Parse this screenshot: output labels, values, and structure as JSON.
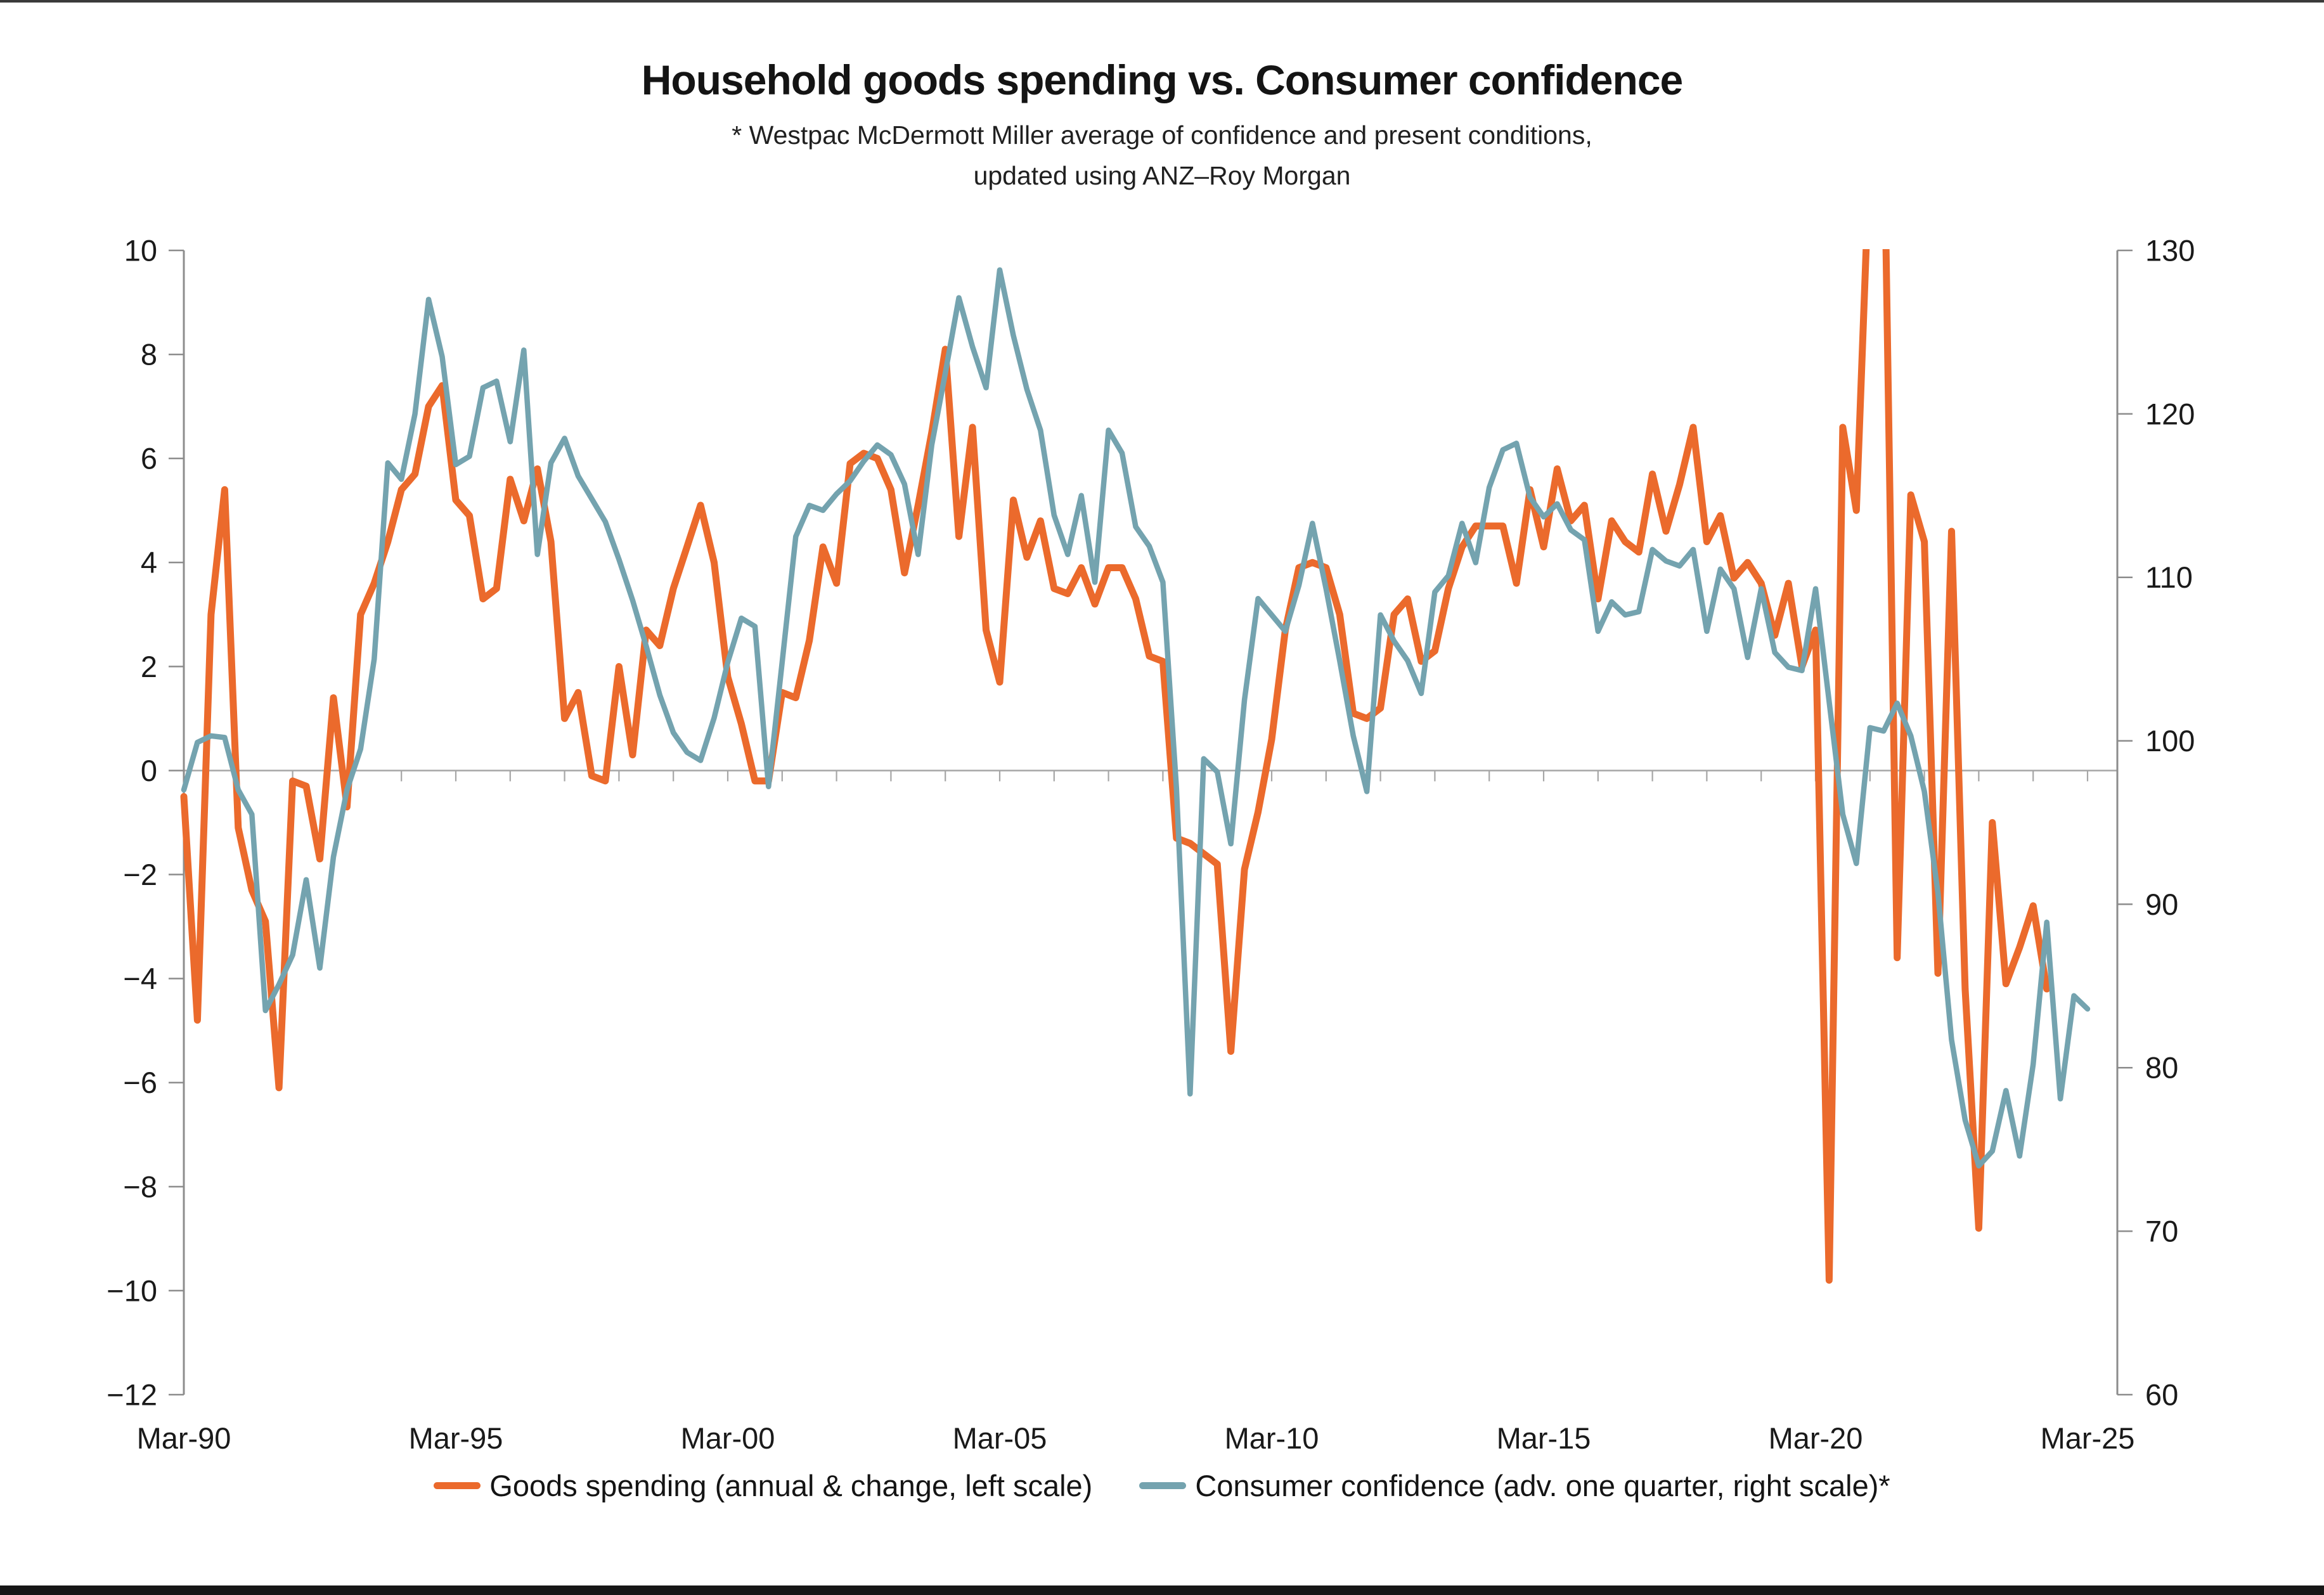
{
  "header": {
    "title": "Household goods spending vs. Consumer confidence",
    "subtitle_line1": "* Westpac McDermott Miller average of confidence and present conditions,",
    "subtitle_line2": "updated using ANZ–Roy Morgan"
  },
  "colors": {
    "spending": "#EB6A2C",
    "confidence": "#74A3AF",
    "axis_line": "#8c8c8c",
    "zero_line": "#a6a6a6",
    "text": "#1a1a1a"
  },
  "chart_data": {
    "type": "line",
    "title": "Household goods spending vs. Consumer confidence",
    "x_start": "1990-Q1",
    "x_frequency": "quarterly",
    "x_tick_labels": [
      "Mar-90",
      "Mar-95",
      "Mar-00",
      "Mar-05",
      "Mar-10",
      "Mar-15",
      "Mar-20",
      "Mar-25"
    ],
    "x_minor_ticks": "yearly ticks along the zero line",
    "left_axis": {
      "ticks": [
        10,
        8,
        6,
        4,
        2,
        0,
        -2,
        -4,
        -6,
        -8,
        -10,
        -12
      ],
      "range": [
        -12,
        10
      ]
    },
    "right_axis": {
      "ticks": [
        130,
        120,
        110,
        100,
        90,
        80,
        70,
        60
      ],
      "range": [
        60,
        130
      ]
    },
    "grid": "zero line only",
    "legend_position": "bottom-center",
    "clip_note": "Goods-spending values above 10 (2021 Q1-Q2) are clipped by the top of the plot",
    "series": [
      {
        "name": "Goods spending (annual & change, left scale)",
        "axis": "left",
        "color": "#EB6A2C",
        "stroke_width": 11,
        "values": [
          -0.5,
          -4.8,
          3.0,
          5.4,
          -1.1,
          -2.3,
          -2.9,
          -6.1,
          -0.2,
          -0.3,
          -1.7,
          1.4,
          -0.7,
          3.0,
          3.6,
          4.4,
          5.4,
          5.7,
          7.0,
          7.4,
          5.2,
          4.9,
          3.3,
          3.5,
          5.6,
          4.8,
          5.8,
          4.4,
          1.0,
          1.5,
          -0.1,
          -0.2,
          2.0,
          0.3,
          2.7,
          2.4,
          3.5,
          4.3,
          5.1,
          4.0,
          1.8,
          0.9,
          -0.2,
          -0.2,
          1.5,
          1.4,
          2.5,
          4.3,
          3.6,
          5.9,
          6.1,
          6.0,
          5.4,
          3.8,
          5.1,
          6.5,
          8.1,
          4.5,
          6.6,
          2.7,
          1.7,
          5.2,
          4.1,
          4.8,
          3.5,
          3.4,
          3.9,
          3.2,
          3.9,
          3.9,
          3.3,
          2.2,
          2.1,
          -1.3,
          -1.4,
          -1.6,
          -1.8,
          -5.4,
          -1.9,
          -0.8,
          0.6,
          2.7,
          3.9,
          4.0,
          3.9,
          3.0,
          1.1,
          1.0,
          1.2,
          3.0,
          3.3,
          2.1,
          2.3,
          3.5,
          4.3,
          4.7,
          4.7,
          4.7,
          3.6,
          5.4,
          4.3,
          5.8,
          4.8,
          5.1,
          3.3,
          4.8,
          4.4,
          4.2,
          5.7,
          4.6,
          5.5,
          6.6,
          4.4,
          4.9,
          3.7,
          4.0,
          3.6,
          2.6,
          3.6,
          2.0,
          2.7,
          -9.8,
          6.6,
          5.0,
          12.0,
          13.0,
          -3.6,
          5.3,
          4.4,
          -3.9,
          4.6,
          -4.2,
          -8.8,
          -1.0,
          -4.1,
          -3.4,
          -2.6,
          -4.2
        ]
      },
      {
        "name": "Consumer confidence (adv. one quarter, right scale)*",
        "axis": "right",
        "color": "#74A3AF",
        "stroke_width": 8.5,
        "values": [
          97.0,
          99.9,
          100.3,
          100.2,
          97.0,
          95.5,
          83.5,
          85.1,
          86.9,
          91.5,
          86.1,
          92.9,
          97.0,
          99.5,
          105.0,
          117.0,
          116.0,
          120.0,
          127.0,
          123.5,
          116.9,
          117.4,
          121.6,
          122.0,
          118.3,
          123.9,
          111.4,
          117.0,
          118.5,
          116.2,
          114.8,
          113.4,
          111.1,
          108.6,
          105.8,
          102.8,
          100.5,
          99.3,
          98.8,
          101.4,
          104.8,
          107.5,
          107.0,
          97.2,
          104.8,
          112.5,
          114.4,
          114.1,
          115.1,
          115.9,
          117.1,
          118.1,
          117.5,
          115.7,
          111.4,
          118.1,
          122.5,
          127.1,
          124.1,
          121.6,
          128.8,
          124.8,
          121.5,
          119.0,
          113.8,
          111.4,
          115.0,
          109.7,
          119.0,
          117.6,
          113.1,
          111.9,
          109.7,
          97.1,
          78.4,
          98.9,
          98.1,
          93.7,
          102.5,
          108.7,
          107.7,
          106.7,
          109.5,
          113.3,
          109.3,
          104.9,
          100.3,
          96.9,
          107.7,
          106.1,
          104.9,
          102.9,
          109.1,
          110.1,
          113.3,
          110.9,
          115.5,
          117.8,
          118.2,
          114.9,
          113.7,
          114.5,
          112.9,
          112.3,
          106.7,
          108.5,
          107.7,
          107.9,
          111.7,
          111.0,
          110.7,
          111.7,
          106.7,
          110.5,
          109.3,
          105.1,
          109.3,
          105.4,
          104.5,
          104.3,
          109.3,
          102.4,
          95.5,
          92.5,
          100.8,
          100.6,
          102.3,
          100.3,
          96.9,
          90.7,
          81.7,
          76.8,
          74.0,
          74.9,
          78.6,
          74.6,
          80.2,
          88.9,
          78.1,
          84.4,
          83.6
        ]
      }
    ]
  }
}
